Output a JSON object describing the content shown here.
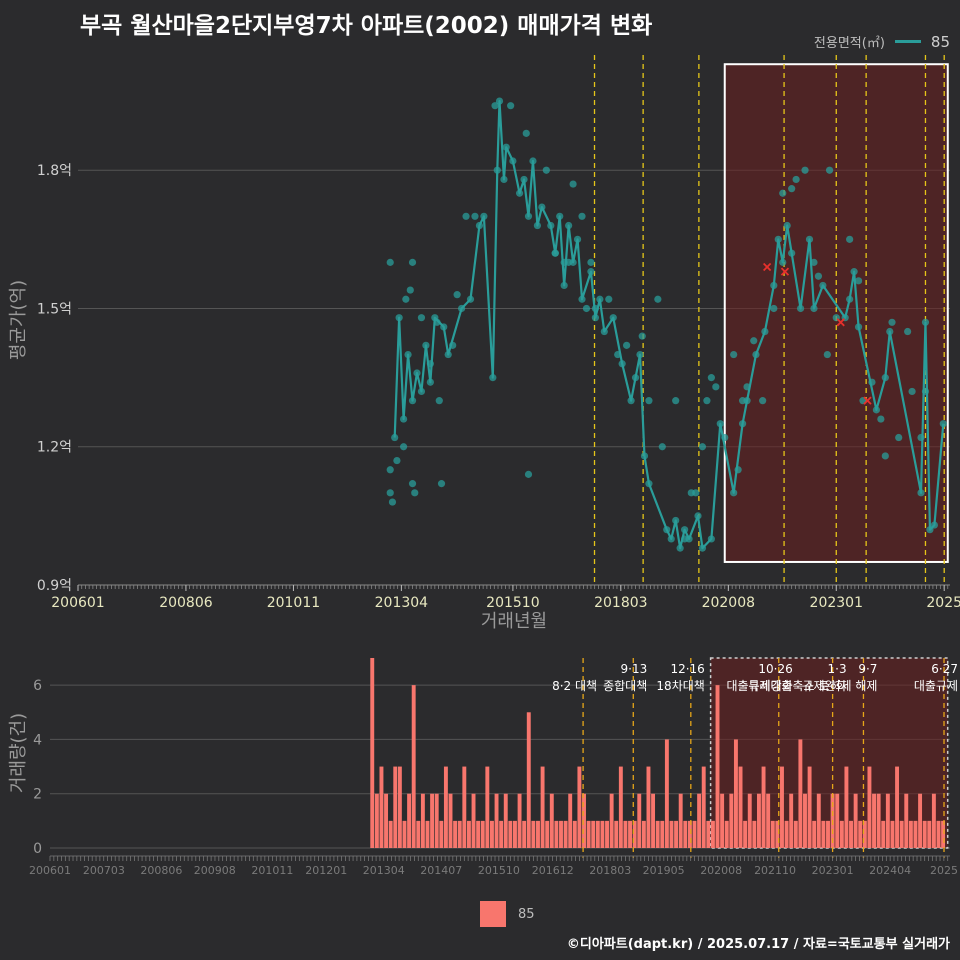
{
  "title": "부곡 월산마을2단지부영7차 아파트(2002) 매매가격 변화",
  "legend": {
    "price_title": "전용면적(㎡)",
    "price_series": "85",
    "volume_series": "85"
  },
  "footer": "©디아파트(dapt.kr) / 2025.07.17 / 자료=국토교통부 실거래가",
  "colors": {
    "line": "#2a9d9a",
    "bar": "#f8766d",
    "policy": "#e6c619",
    "highlight": "#6b1f1f",
    "cancel": "#e8312c"
  },
  "chart_data": [
    {
      "type": "line",
      "title": "부곡 월산마을2단지부영7차 아파트(2002) 매매가격 변화",
      "xlabel": "거래년월",
      "ylabel": "평균가(억)",
      "xlim": [
        2006.0,
        2025.55
      ],
      "ylim": [
        0.9,
        2.05
      ],
      "yticks": [
        0.9,
        1.2,
        1.5,
        1.8
      ],
      "ytick_labels": [
        "0.9억",
        "1.2억",
        "1.5억",
        "1.8억"
      ],
      "xtick_labels": [
        "200601",
        "200806",
        "201011",
        "201304",
        "201510",
        "201803",
        "202008",
        "202301",
        "2025"
      ],
      "xtick_values": [
        2006.0,
        2008.42,
        2010.83,
        2013.25,
        2015.75,
        2018.17,
        2020.58,
        2023.0,
        2025.42
      ],
      "policy_lines": [
        2017.58,
        2018.67,
        2019.92,
        2021.83,
        2023.0,
        2023.67,
        2025.0,
        2025.42
      ],
      "highlight_range": {
        "x": [
          2020.5,
          2025.5
        ],
        "y": [
          0.95,
          2.03
        ]
      },
      "series": [
        {
          "name": "85",
          "points": [
            [
              2013.1,
              1.22
            ],
            [
              2013.2,
              1.48
            ],
            [
              2013.3,
              1.26
            ],
            [
              2013.4,
              1.4
            ],
            [
              2013.5,
              1.3
            ],
            [
              2013.6,
              1.36
            ],
            [
              2013.7,
              1.32
            ],
            [
              2013.8,
              1.42
            ],
            [
              2013.9,
              1.34
            ],
            [
              2014.0,
              1.48
            ],
            [
              2014.2,
              1.46
            ],
            [
              2014.3,
              1.4
            ],
            [
              2014.6,
              1.5
            ],
            [
              2014.8,
              1.52
            ],
            [
              2015.0,
              1.68
            ],
            [
              2015.1,
              1.7
            ],
            [
              2015.3,
              1.35
            ],
            [
              2015.4,
              1.8
            ],
            [
              2015.45,
              1.95
            ],
            [
              2015.55,
              1.78
            ],
            [
              2015.6,
              1.85
            ],
            [
              2015.75,
              1.82
            ],
            [
              2015.9,
              1.75
            ],
            [
              2016.0,
              1.78
            ],
            [
              2016.1,
              1.7
            ],
            [
              2016.2,
              1.82
            ],
            [
              2016.3,
              1.68
            ],
            [
              2016.4,
              1.72
            ],
            [
              2016.6,
              1.68
            ],
            [
              2016.7,
              1.62
            ],
            [
              2016.8,
              1.7
            ],
            [
              2016.9,
              1.55
            ],
            [
              2017.0,
              1.68
            ],
            [
              2017.1,
              1.6
            ],
            [
              2017.2,
              1.65
            ],
            [
              2017.3,
              1.52
            ],
            [
              2017.5,
              1.58
            ],
            [
              2017.6,
              1.48
            ],
            [
              2017.7,
              1.52
            ],
            [
              2017.8,
              1.45
            ],
            [
              2018.0,
              1.48
            ],
            [
              2018.2,
              1.38
            ],
            [
              2018.4,
              1.3
            ],
            [
              2018.6,
              1.4
            ],
            [
              2018.7,
              1.18
            ],
            [
              2018.8,
              1.12
            ],
            [
              2019.2,
              1.02
            ],
            [
              2019.3,
              1.0
            ],
            [
              2019.4,
              1.04
            ],
            [
              2019.5,
              0.98
            ],
            [
              2019.6,
              1.02
            ],
            [
              2019.7,
              1.0
            ],
            [
              2019.9,
              1.05
            ],
            [
              2020.0,
              0.98
            ],
            [
              2020.2,
              1.0
            ],
            [
              2020.4,
              1.25
            ],
            [
              2020.7,
              1.1
            ],
            [
              2020.9,
              1.25
            ],
            [
              2021.0,
              1.3
            ],
            [
              2021.2,
              1.4
            ],
            [
              2021.4,
              1.45
            ],
            [
              2021.6,
              1.55
            ],
            [
              2021.7,
              1.65
            ],
            [
              2021.8,
              1.6
            ],
            [
              2021.9,
              1.68
            ],
            [
              2022.0,
              1.62
            ],
            [
              2022.2,
              1.5
            ],
            [
              2022.4,
              1.65
            ],
            [
              2022.5,
              1.5
            ],
            [
              2022.7,
              1.55
            ],
            [
              2023.2,
              1.48
            ],
            [
              2023.3,
              1.52
            ],
            [
              2023.4,
              1.58
            ],
            [
              2023.5,
              1.46
            ],
            [
              2023.9,
              1.28
            ],
            [
              2024.1,
              1.35
            ],
            [
              2024.2,
              1.45
            ],
            [
              2024.9,
              1.1
            ],
            [
              2025.0,
              1.47
            ],
            [
              2025.1,
              1.02
            ],
            [
              2025.2,
              1.03
            ],
            [
              2025.4,
              1.25
            ]
          ],
          "scatter": [
            [
              2013.0,
              1.6
            ],
            [
              2013.0,
              1.15
            ],
            [
              2013.0,
              1.1
            ],
            [
              2013.05,
              1.08
            ],
            [
              2013.15,
              1.17
            ],
            [
              2013.3,
              1.2
            ],
            [
              2013.35,
              1.52
            ],
            [
              2013.45,
              1.54
            ],
            [
              2013.5,
              1.6
            ],
            [
              2013.5,
              1.12
            ],
            [
              2013.55,
              1.1
            ],
            [
              2013.7,
              1.48
            ],
            [
              2013.9,
              1.38
            ],
            [
              2014.05,
              1.47
            ],
            [
              2014.1,
              1.3
            ],
            [
              2014.15,
              1.12
            ],
            [
              2014.4,
              1.42
            ],
            [
              2014.5,
              1.53
            ],
            [
              2014.7,
              1.7
            ],
            [
              2014.9,
              1.7
            ],
            [
              2015.35,
              1.94
            ],
            [
              2015.7,
              1.94
            ],
            [
              2016.1,
              1.14
            ],
            [
              2016.05,
              1.88
            ],
            [
              2016.5,
              1.8
            ],
            [
              2016.7,
              1.62
            ],
            [
              2016.9,
              1.6
            ],
            [
              2017.0,
              1.6
            ],
            [
              2017.1,
              1.77
            ],
            [
              2017.3,
              1.7
            ],
            [
              2017.4,
              1.5
            ],
            [
              2017.5,
              1.6
            ],
            [
              2017.6,
              1.5
            ],
            [
              2017.9,
              1.52
            ],
            [
              2018.1,
              1.4
            ],
            [
              2018.3,
              1.42
            ],
            [
              2018.5,
              1.35
            ],
            [
              2018.65,
              1.44
            ],
            [
              2018.8,
              1.3
            ],
            [
              2019.0,
              1.52
            ],
            [
              2019.1,
              1.2
            ],
            [
              2019.4,
              1.3
            ],
            [
              2019.6,
              1.0
            ],
            [
              2019.75,
              1.1
            ],
            [
              2019.85,
              1.1
            ],
            [
              2020.0,
              1.2
            ],
            [
              2020.1,
              1.3
            ],
            [
              2020.2,
              1.35
            ],
            [
              2020.3,
              1.33
            ],
            [
              2020.5,
              1.22
            ],
            [
              2020.7,
              1.4
            ],
            [
              2020.8,
              1.15
            ],
            [
              2020.9,
              1.3
            ],
            [
              2021.0,
              1.33
            ],
            [
              2021.15,
              1.43
            ],
            [
              2021.35,
              1.3
            ],
            [
              2021.6,
              1.5
            ],
            [
              2021.8,
              1.75
            ],
            [
              2022.0,
              1.76
            ],
            [
              2022.1,
              1.78
            ],
            [
              2022.3,
              1.8
            ],
            [
              2022.5,
              1.6
            ],
            [
              2022.6,
              1.57
            ],
            [
              2022.8,
              1.4
            ],
            [
              2022.85,
              1.8
            ],
            [
              2023.0,
              1.48
            ],
            [
              2023.3,
              1.65
            ],
            [
              2023.5,
              1.56
            ],
            [
              2023.6,
              1.3
            ],
            [
              2023.8,
              1.34
            ],
            [
              2024.0,
              1.26
            ],
            [
              2024.1,
              1.18
            ],
            [
              2024.25,
              1.47
            ],
            [
              2024.4,
              1.22
            ],
            [
              2024.6,
              1.45
            ],
            [
              2024.7,
              1.32
            ],
            [
              2024.9,
              1.22
            ],
            [
              2025.0,
              1.32
            ]
          ],
          "cancelled": [
            [
              2021.45,
              1.59
            ],
            [
              2021.85,
              1.58
            ],
            [
              2023.1,
              1.47
            ],
            [
              2023.7,
              1.3
            ]
          ]
        }
      ]
    },
    {
      "type": "bar",
      "xlabel": "",
      "ylabel": "거래량(건)",
      "xlim": [
        2006.0,
        2025.55
      ],
      "ylim": [
        0,
        7
      ],
      "yticks": [
        0,
        2,
        4,
        6
      ],
      "ytick_labels": [
        "0",
        "2",
        "4",
        "6"
      ],
      "xtick_labels": [
        "200601",
        "200703",
        "200806",
        "200908",
        "201011",
        "201201",
        "201304",
        "201407",
        "201510",
        "201612",
        "201803",
        "201905",
        "202008",
        "202110",
        "202301",
        "202404",
        "2025"
      ],
      "xtick_values": [
        2006.0,
        2007.17,
        2008.42,
        2009.58,
        2010.83,
        2012.0,
        2013.25,
        2014.5,
        2015.75,
        2016.92,
        2018.17,
        2019.33,
        2020.58,
        2021.75,
        2023.0,
        2024.25,
        2025.42
      ],
      "annotations": [
        {
          "x": 2017.58,
          "date": "",
          "label": "8·2 대책"
        },
        {
          "x": 2018.67,
          "date": "9·13",
          "label": "종합대책"
        },
        {
          "x": 2019.92,
          "date": "12·16",
          "label": "18차대책"
        },
        {
          "x": 2021.83,
          "date": "10·26",
          "label": "대출규제강화"
        },
        {
          "x": 2023.0,
          "date": "1·3",
          "label": "규제완화"
        },
        {
          "x": 2023.67,
          "date": "9·7",
          "label": "특례대출축소 토허제 해제"
        },
        {
          "x": 2025.42,
          "date": "6·27",
          "label": "대출규제"
        }
      ],
      "highlight_range": {
        "x": [
          2020.35,
          2025.5
        ],
        "y": [
          0,
          7
        ]
      },
      "series": [
        {
          "name": "85",
          "x": [
            2013.0,
            2013.1,
            2013.2,
            2013.3,
            2013.4,
            2013.5,
            2013.6,
            2013.7,
            2013.8,
            2013.9,
            2014.0,
            2014.1,
            2014.2,
            2014.3,
            2014.4,
            2014.5,
            2014.6,
            2014.7,
            2014.8,
            2014.9,
            2015.0,
            2015.1,
            2015.2,
            2015.3,
            2015.4,
            2015.5,
            2015.6,
            2015.7,
            2015.8,
            2015.9,
            2016.0,
            2016.1,
            2016.2,
            2016.3,
            2016.4,
            2016.5,
            2016.6,
            2016.7,
            2016.8,
            2016.9,
            2017.0,
            2017.1,
            2017.2,
            2017.3,
            2017.4,
            2017.5,
            2017.6,
            2017.7,
            2017.8,
            2017.9,
            2018.0,
            2018.1,
            2018.2,
            2018.3,
            2018.4,
            2018.5,
            2018.6,
            2018.7,
            2018.8,
            2018.9,
            2019.0,
            2019.1,
            2019.2,
            2019.3,
            2019.4,
            2019.5,
            2019.6,
            2019.7,
            2019.8,
            2019.9,
            2020.0,
            2020.1,
            2020.2,
            2020.3,
            2020.4,
            2020.5,
            2020.6,
            2020.7,
            2020.8,
            2020.9,
            2021.0,
            2021.1,
            2021.2,
            2021.3,
            2021.4,
            2021.5,
            2021.6,
            2021.7,
            2021.8,
            2021.9,
            2022.0,
            2022.1,
            2022.2,
            2022.3,
            2022.4,
            2022.5,
            2022.6,
            2022.7,
            2022.8,
            2022.9,
            2023.0,
            2023.1,
            2023.2,
            2023.3,
            2023.4,
            2023.5,
            2023.6,
            2023.7,
            2023.8,
            2023.9,
            2024.0,
            2024.1,
            2024.2,
            2024.3,
            2024.4,
            2024.5,
            2024.6,
            2024.7,
            2024.8,
            2024.9,
            2025.0,
            2025.1,
            2025.2,
            2025.3,
            2025.4
          ],
          "values": [
            7,
            2,
            3,
            2,
            1,
            3,
            3,
            1,
            2,
            6,
            1,
            2,
            1,
            2,
            2,
            1,
            3,
            2,
            1,
            1,
            3,
            1,
            2,
            1,
            1,
            3,
            1,
            2,
            1,
            2,
            1,
            1,
            2,
            1,
            5,
            1,
            1,
            3,
            1,
            2,
            1,
            1,
            1,
            2,
            1,
            3,
            2,
            1,
            1,
            1,
            1,
            1,
            2,
            1,
            3,
            1,
            1,
            1,
            2,
            1,
            3,
            2,
            1,
            1,
            4,
            1,
            1,
            2,
            1,
            1,
            1,
            2,
            3,
            1,
            1,
            6,
            2,
            1,
            2,
            4,
            3,
            1,
            2,
            1,
            2,
            3,
            2,
            1,
            1,
            3,
            1,
            2,
            1,
            4,
            2,
            3,
            1,
            2,
            1,
            1,
            2,
            2,
            1,
            3,
            1,
            2,
            1,
            1,
            3,
            2,
            2,
            1,
            2,
            1,
            3,
            1,
            2,
            1,
            1,
            2,
            1,
            1,
            2,
            1,
            1
          ]
        }
      ]
    }
  ]
}
